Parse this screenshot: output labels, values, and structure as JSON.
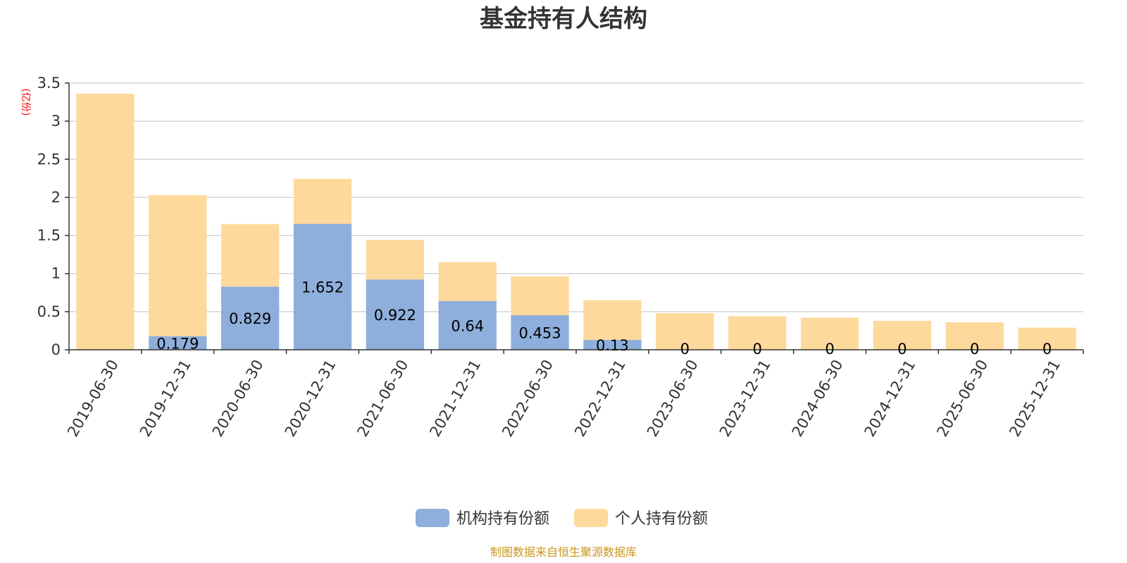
{
  "chart_data": {
    "type": "bar",
    "stacked": true,
    "title": "基金持有人结构",
    "unit_label": "(亿份)",
    "categories": [
      "2019-06-30",
      "2019-12-31",
      "2020-06-30",
      "2020-12-31",
      "2021-06-30",
      "2021-12-31",
      "2022-06-30",
      "2022-12-31",
      "2023-06-30",
      "2023-12-31",
      "2024-06-30",
      "2024-12-31",
      "2025-06-30",
      "2025-12-31"
    ],
    "series": [
      {
        "name": "机构持有份额",
        "color": "#8eaedb",
        "values": [
          0,
          0.179,
          0.829,
          1.652,
          0.922,
          0.64,
          0.453,
          0.13,
          0,
          0,
          0,
          0,
          0,
          0
        ],
        "labels": [
          "",
          "0.179",
          "0.829",
          "1.652",
          "0.922",
          "0.64",
          "0.453",
          "0.13",
          "0",
          "0",
          "0",
          "0",
          "0",
          "0"
        ]
      },
      {
        "name": "个人持有份额",
        "color": "#fdd99b",
        "values": [
          3.36,
          1.85,
          0.82,
          0.59,
          0.52,
          0.51,
          0.51,
          0.52,
          0.48,
          0.44,
          0.42,
          0.38,
          0.36,
          0.29
        ]
      }
    ],
    "yticks": [
      "0",
      "0.5",
      "1",
      "1.5",
      "2",
      "2.5",
      "3",
      "3.5"
    ],
    "ylim": [
      0,
      3.5
    ],
    "grid": true,
    "legend_position": "bottom-center"
  },
  "source_note": "制图数据来自恒生聚源数据库"
}
